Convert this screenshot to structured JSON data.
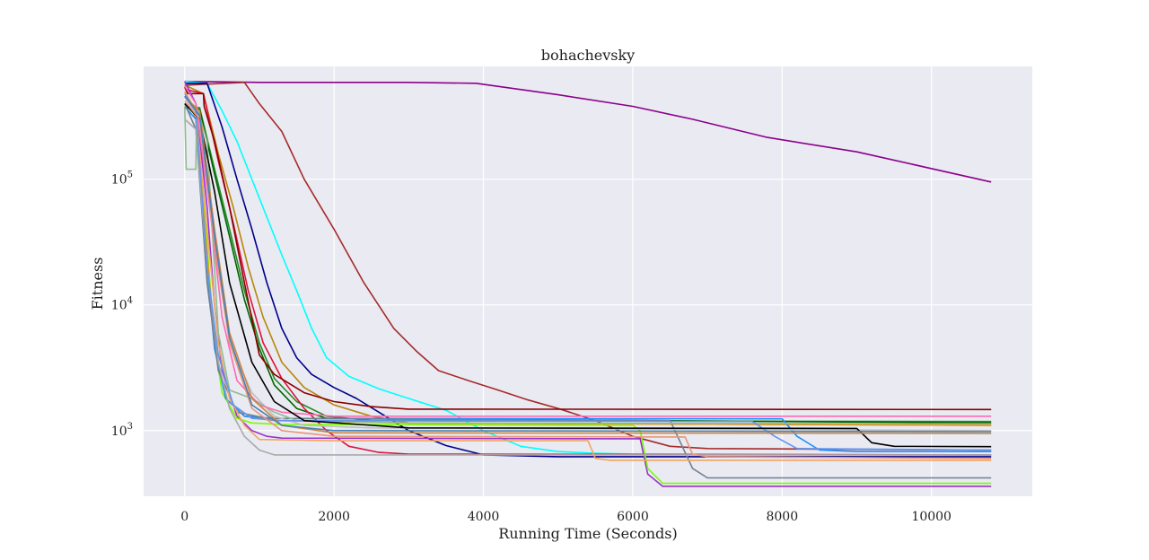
{
  "chart_data": {
    "type": "line",
    "title": "bohachevsky",
    "xlabel": "Running Time (Seconds)",
    "ylabel": "Fitness",
    "x_scale": "linear",
    "y_scale": "log",
    "xlim": [
      -550,
      11350
    ],
    "ylim": [
      300,
      790000
    ],
    "x_ticks": [
      0,
      2000,
      4000,
      6000,
      8000,
      10000
    ],
    "x_tick_labels": [
      "0",
      "2000",
      "4000",
      "6000",
      "8000",
      "10000"
    ],
    "y_ticks": [
      1000,
      10000,
      100000
    ],
    "y_tick_labels": [
      {
        "base": "10",
        "exp": "3"
      },
      {
        "base": "10",
        "exp": "4"
      },
      {
        "base": "10",
        "exp": "5"
      }
    ],
    "grid": true,
    "background": "#eaeaf2",
    "series": [
      {
        "color": "#8b008b",
        "points": [
          [
            0,
            600000
          ],
          [
            1000,
            590000
          ],
          [
            3000,
            590000
          ],
          [
            3900,
            580000
          ],
          [
            5000,
            470000
          ],
          [
            6000,
            380000
          ],
          [
            6800,
            300000
          ],
          [
            7800,
            215000
          ],
          [
            9000,
            165000
          ],
          [
            10800,
            95000
          ]
        ]
      },
      {
        "color": "#a52a2a",
        "points": [
          [
            0,
            560000
          ],
          [
            800,
            590000
          ],
          [
            1000,
            400000
          ],
          [
            1300,
            240000
          ],
          [
            1600,
            100000
          ],
          [
            2000,
            40000
          ],
          [
            2400,
            15000
          ],
          [
            2800,
            6500
          ],
          [
            3100,
            4300
          ],
          [
            3400,
            3000
          ],
          [
            3800,
            2500
          ],
          [
            4200,
            2100
          ],
          [
            4600,
            1750
          ],
          [
            5000,
            1500
          ],
          [
            5500,
            1200
          ],
          [
            6000,
            900
          ],
          [
            6500,
            750
          ],
          [
            7000,
            720
          ],
          [
            10800,
            700
          ]
        ]
      },
      {
        "color": "#00ffff",
        "points": [
          [
            0,
            600000
          ],
          [
            300,
            580000
          ],
          [
            500,
            350000
          ],
          [
            700,
            200000
          ],
          [
            900,
            100000
          ],
          [
            1100,
            50000
          ],
          [
            1300,
            25000
          ],
          [
            1500,
            13000
          ],
          [
            1700,
            6500
          ],
          [
            1900,
            3800
          ],
          [
            2200,
            2700
          ],
          [
            2600,
            2150
          ],
          [
            3000,
            1800
          ],
          [
            3500,
            1450
          ],
          [
            4000,
            1000
          ],
          [
            4500,
            750
          ],
          [
            5000,
            680
          ],
          [
            5500,
            660
          ],
          [
            6000,
            650
          ],
          [
            10800,
            640
          ]
        ]
      },
      {
        "color": "#00008b",
        "points": [
          [
            0,
            580000
          ],
          [
            300,
            580000
          ],
          [
            500,
            260000
          ],
          [
            700,
            100000
          ],
          [
            900,
            40000
          ],
          [
            1100,
            15000
          ],
          [
            1300,
            6500
          ],
          [
            1500,
            3800
          ],
          [
            1700,
            2800
          ],
          [
            2000,
            2200
          ],
          [
            2300,
            1800
          ],
          [
            2600,
            1400
          ],
          [
            3000,
            1000
          ],
          [
            3500,
            760
          ],
          [
            4000,
            640
          ],
          [
            5000,
            620
          ],
          [
            10800,
            620
          ]
        ]
      },
      {
        "color": "#b8860b",
        "points": [
          [
            0,
            560000
          ],
          [
            250,
            480000
          ],
          [
            450,
            160000
          ],
          [
            650,
            60000
          ],
          [
            850,
            20000
          ],
          [
            1050,
            8000
          ],
          [
            1300,
            3500
          ],
          [
            1600,
            2200
          ],
          [
            2000,
            1600
          ],
          [
            2500,
            1300
          ],
          [
            3000,
            1150
          ],
          [
            10800,
            1100
          ]
        ]
      },
      {
        "color": "#228b22",
        "points": [
          [
            0,
            380000
          ],
          [
            200,
            370000
          ],
          [
            400,
            120000
          ],
          [
            600,
            40000
          ],
          [
            800,
            13000
          ],
          [
            1000,
            5000
          ],
          [
            1200,
            2600
          ],
          [
            1500,
            1700
          ],
          [
            1900,
            1300
          ],
          [
            2500,
            1200
          ],
          [
            10800,
            1180
          ]
        ]
      },
      {
        "color": "#006400",
        "points": [
          [
            0,
            370000
          ],
          [
            200,
            360000
          ],
          [
            400,
            110000
          ],
          [
            600,
            35000
          ],
          [
            800,
            11000
          ],
          [
            1000,
            4500
          ],
          [
            1200,
            2300
          ],
          [
            1500,
            1500
          ],
          [
            1900,
            1250
          ],
          [
            10800,
            1150
          ]
        ]
      },
      {
        "color": "#dc143c",
        "points": [
          [
            0,
            520000
          ],
          [
            250,
            480000
          ],
          [
            450,
            140000
          ],
          [
            650,
            45000
          ],
          [
            850,
            13000
          ],
          [
            1050,
            5000
          ],
          [
            1300,
            2600
          ],
          [
            1600,
            1500
          ],
          [
            1900,
            1000
          ],
          [
            2200,
            750
          ],
          [
            2600,
            670
          ],
          [
            3000,
            650
          ],
          [
            10800,
            640
          ]
        ]
      },
      {
        "color": "#8b0000",
        "points": [
          [
            0,
            540000
          ],
          [
            40,
            480000
          ],
          [
            250,
            480000
          ],
          [
            260,
            380000
          ],
          [
            400,
            200000
          ],
          [
            600,
            60000
          ],
          [
            800,
            15000
          ],
          [
            1000,
            4000
          ],
          [
            1200,
            2800
          ],
          [
            1600,
            2000
          ],
          [
            2000,
            1700
          ],
          [
            2500,
            1550
          ],
          [
            3000,
            1480
          ],
          [
            10800,
            1470
          ]
        ]
      },
      {
        "color": "#9932cc",
        "points": [
          [
            0,
            600000
          ],
          [
            150,
            400000
          ],
          [
            300,
            60000
          ],
          [
            400,
            10000
          ],
          [
            500,
            3000
          ],
          [
            700,
            1300
          ],
          [
            900,
            1000
          ],
          [
            1100,
            900
          ],
          [
            1300,
            870
          ],
          [
            6000,
            860
          ],
          [
            6100,
            860
          ],
          [
            6200,
            450
          ],
          [
            6400,
            360
          ],
          [
            10800,
            360
          ]
        ]
      },
      {
        "color": "#7cfc00",
        "points": [
          [
            0,
            500000
          ],
          [
            150,
            350000
          ],
          [
            300,
            30000
          ],
          [
            400,
            5000
          ],
          [
            500,
            2000
          ],
          [
            700,
            1250
          ],
          [
            900,
            1150
          ],
          [
            1300,
            1120
          ],
          [
            6000,
            1100
          ],
          [
            6100,
            1000
          ],
          [
            6200,
            500
          ],
          [
            6400,
            380
          ],
          [
            10800,
            380
          ]
        ]
      },
      {
        "color": "#ff8c00",
        "points": [
          [
            0,
            500000
          ],
          [
            150,
            300000
          ],
          [
            300,
            25000
          ],
          [
            400,
            5000
          ],
          [
            550,
            1800
          ],
          [
            800,
            1300
          ],
          [
            1200,
            1200
          ],
          [
            3000,
            1150
          ],
          [
            10800,
            1100
          ]
        ]
      },
      {
        "color": "#1e90ff",
        "points": [
          [
            0,
            380000
          ],
          [
            150,
            300000
          ],
          [
            300,
            20000
          ],
          [
            400,
            4500
          ],
          [
            550,
            1800
          ],
          [
            800,
            1300
          ],
          [
            1200,
            1250
          ],
          [
            8000,
            1240
          ],
          [
            8200,
            900
          ],
          [
            8500,
            700
          ],
          [
            9000,
            680
          ],
          [
            10800,
            680
          ]
        ]
      },
      {
        "color": "#708090",
        "points": [
          [
            0,
            400000
          ],
          [
            150,
            250000
          ],
          [
            300,
            15000
          ],
          [
            450,
            3000
          ],
          [
            700,
            1400
          ],
          [
            1100,
            1250
          ],
          [
            4000,
            1220
          ],
          [
            6500,
            1200
          ],
          [
            6600,
            900
          ],
          [
            6800,
            500
          ],
          [
            7000,
            420
          ],
          [
            10800,
            420
          ]
        ]
      },
      {
        "color": "#a9a9a9",
        "points": [
          [
            0,
            300000
          ],
          [
            150,
            250000
          ],
          [
            300,
            20000
          ],
          [
            450,
            3500
          ],
          [
            600,
            1500
          ],
          [
            800,
            900
          ],
          [
            1000,
            700
          ],
          [
            1200,
            640
          ],
          [
            4000,
            640
          ],
          [
            10800,
            640
          ]
        ]
      },
      {
        "color": "#bebebe",
        "points": [
          [
            0,
            450000
          ],
          [
            200,
            300000
          ],
          [
            400,
            30000
          ],
          [
            600,
            5000
          ],
          [
            900,
            2000
          ],
          [
            1200,
            1300
          ],
          [
            1600,
            1100
          ],
          [
            2500,
            1050
          ],
          [
            10800,
            1000
          ]
        ]
      },
      {
        "color": "#f4a460",
        "points": [
          [
            0,
            500000
          ],
          [
            150,
            350000
          ],
          [
            300,
            40000
          ],
          [
            450,
            5000
          ],
          [
            600,
            1800
          ],
          [
            800,
            1100
          ],
          [
            1000,
            850
          ],
          [
            2000,
            830
          ],
          [
            5400,
            830
          ],
          [
            5500,
            600
          ],
          [
            5700,
            580
          ],
          [
            10800,
            580
          ]
        ]
      },
      {
        "color": "#8fbc8f",
        "points": [
          [
            0,
            380000
          ],
          [
            20,
            120000
          ],
          [
            150,
            120000
          ],
          [
            160,
            380000
          ],
          [
            300,
            200000
          ],
          [
            450,
            6000
          ],
          [
            600,
            2100
          ],
          [
            900,
            1800
          ],
          [
            1200,
            1400
          ],
          [
            1500,
            1200
          ],
          [
            3000,
            1150
          ],
          [
            10800,
            1130
          ]
        ]
      },
      {
        "color": "#ff69b4",
        "points": [
          [
            0,
            550000
          ],
          [
            150,
            400000
          ],
          [
            350,
            50000
          ],
          [
            500,
            8000
          ],
          [
            700,
            2500
          ],
          [
            1000,
            1600
          ],
          [
            1300,
            1400
          ],
          [
            2000,
            1300
          ],
          [
            10800,
            1300
          ]
        ]
      },
      {
        "color": "#6495ed",
        "points": [
          [
            0,
            480000
          ],
          [
            150,
            350000
          ],
          [
            300,
            20000
          ],
          [
            450,
            4000
          ],
          [
            650,
            1600
          ],
          [
            900,
            1250
          ],
          [
            1300,
            1200
          ],
          [
            7600,
            1180
          ],
          [
            7900,
            900
          ],
          [
            8200,
            720
          ],
          [
            10800,
            700
          ]
        ]
      },
      {
        "color": "#000000",
        "points": [
          [
            0,
            400000
          ],
          [
            200,
            300000
          ],
          [
            400,
            80000
          ],
          [
            600,
            15000
          ],
          [
            900,
            3500
          ],
          [
            1200,
            1700
          ],
          [
            1600,
            1200
          ],
          [
            3000,
            1050
          ],
          [
            9000,
            1040
          ],
          [
            9200,
            800
          ],
          [
            9500,
            750
          ],
          [
            10800,
            745
          ]
        ]
      },
      {
        "color": "#cd853f",
        "points": [
          [
            0,
            450000
          ],
          [
            200,
            350000
          ],
          [
            400,
            40000
          ],
          [
            600,
            6000
          ],
          [
            900,
            1800
          ],
          [
            1300,
            1100
          ],
          [
            2000,
            960
          ],
          [
            10800,
            950
          ]
        ]
      },
      {
        "color": "#e9967a",
        "points": [
          [
            0,
            420000
          ],
          [
            200,
            300000
          ],
          [
            400,
            30000
          ],
          [
            600,
            5000
          ],
          [
            900,
            1500
          ],
          [
            1300,
            1000
          ],
          [
            2000,
            900
          ],
          [
            6700,
            890
          ],
          [
            6800,
            650
          ],
          [
            7000,
            620
          ],
          [
            10800,
            600
          ]
        ]
      },
      {
        "color": "#4682b4",
        "points": [
          [
            0,
            460000
          ],
          [
            200,
            320000
          ],
          [
            400,
            35000
          ],
          [
            600,
            5500
          ],
          [
            900,
            1600
          ],
          [
            1300,
            1100
          ],
          [
            2000,
            1000
          ],
          [
            10800,
            980
          ]
        ]
      }
    ]
  }
}
